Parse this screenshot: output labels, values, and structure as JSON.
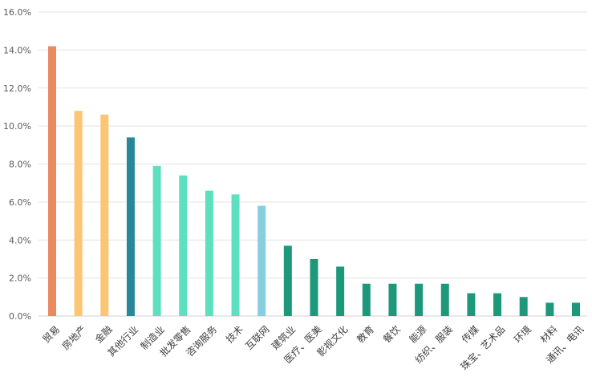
{
  "chart_data": {
    "type": "bar",
    "title": "",
    "xlabel": "",
    "ylabel": "",
    "ylim": [
      0,
      16
    ],
    "yticks": [
      "0.0%",
      "2.0%",
      "4.0%",
      "6.0%",
      "8.0%",
      "10.0%",
      "12.0%",
      "14.0%",
      "16.0%"
    ],
    "ytick_values": [
      0,
      2,
      4,
      6,
      8,
      10,
      12,
      14,
      16
    ],
    "grid": true,
    "categories": [
      "贸易",
      "房地产",
      "金融",
      "其他行业",
      "制造业",
      "批发零售",
      "咨询服务",
      "技术",
      "互联网",
      "建筑业",
      "医疗、医美",
      "影视文化",
      "教育",
      "餐饮",
      "能源",
      "纺织、服装",
      "传媒",
      "珠宝、艺术品",
      "环境",
      "材料",
      "通讯、电讯"
    ],
    "values": [
      14.2,
      10.8,
      10.6,
      9.4,
      7.9,
      7.4,
      6.6,
      6.4,
      5.8,
      3.7,
      3.0,
      2.6,
      1.7,
      1.7,
      1.7,
      1.7,
      1.2,
      1.2,
      1.0,
      0.7,
      0.7
    ],
    "colors": [
      "#E8895F",
      "#FBC673",
      "#FBC673",
      "#2A8799",
      "#5DE0BF",
      "#5DE0BF",
      "#5DE0BF",
      "#5DE0BF",
      "#86CEE0",
      "#1E987A",
      "#1E987A",
      "#1E987A",
      "#1E987A",
      "#1E987A",
      "#1E987A",
      "#1E987A",
      "#1E987A",
      "#1E987A",
      "#1E987A",
      "#1E987A",
      "#1E987A"
    ]
  }
}
